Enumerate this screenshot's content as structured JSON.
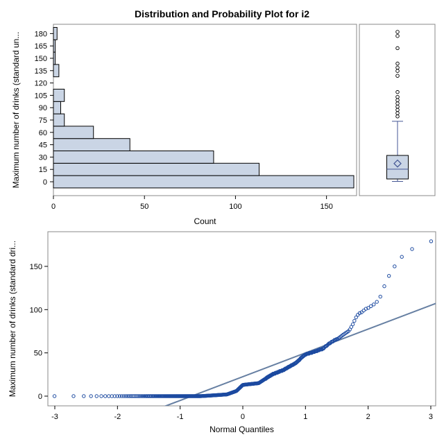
{
  "chart_data": [
    {
      "type": "bar",
      "orientation": "horizontal",
      "title": "Distribution and Probability Plot for i2",
      "ylabel": "Maximum number of drinks (standard un...",
      "xlabel": "Count",
      "categories": [
        "0",
        "15",
        "30",
        "45",
        "60",
        "75",
        "90",
        "105",
        "120",
        "135",
        "150",
        "165",
        "180"
      ],
      "values": [
        165,
        113,
        88,
        42,
        22,
        6,
        4,
        6,
        0,
        3,
        1,
        1,
        2
      ],
      "x_ticks": [
        "0",
        "50",
        "100",
        "150"
      ],
      "xlim": [
        0,
        165
      ],
      "colors": {
        "fill": "#cad5e5",
        "stroke": "#000000"
      }
    },
    {
      "type": "box",
      "orientation": "vertical",
      "min": 0,
      "q1": 3,
      "median": 15,
      "mean": 22,
      "q3": 32,
      "whisker_high": 74,
      "outliers": [
        80,
        84,
        88,
        92,
        96,
        100,
        104,
        110,
        130,
        136,
        140,
        145,
        164,
        179,
        184
      ],
      "colors": {
        "fill": "#cad5e5",
        "stroke": "#445694",
        "mean": "#445694"
      }
    },
    {
      "type": "scatter",
      "xlabel": "Normal Quantiles",
      "ylabel": "Maximum number of drinks (standard dri...",
      "x_ticks": [
        "-3",
        "-2",
        "-1",
        "0",
        "1",
        "2",
        "3"
      ],
      "y_ticks": [
        "0",
        "50",
        "100",
        "150"
      ],
      "xlim": [
        -3.1,
        3.05
      ],
      "ylim": [
        -6,
        188
      ],
      "reference_line": {
        "intercept": 22.5,
        "slope": 27.5
      },
      "colors": {
        "points": "#1c4aa0",
        "line": "#667fa2"
      }
    }
  ]
}
